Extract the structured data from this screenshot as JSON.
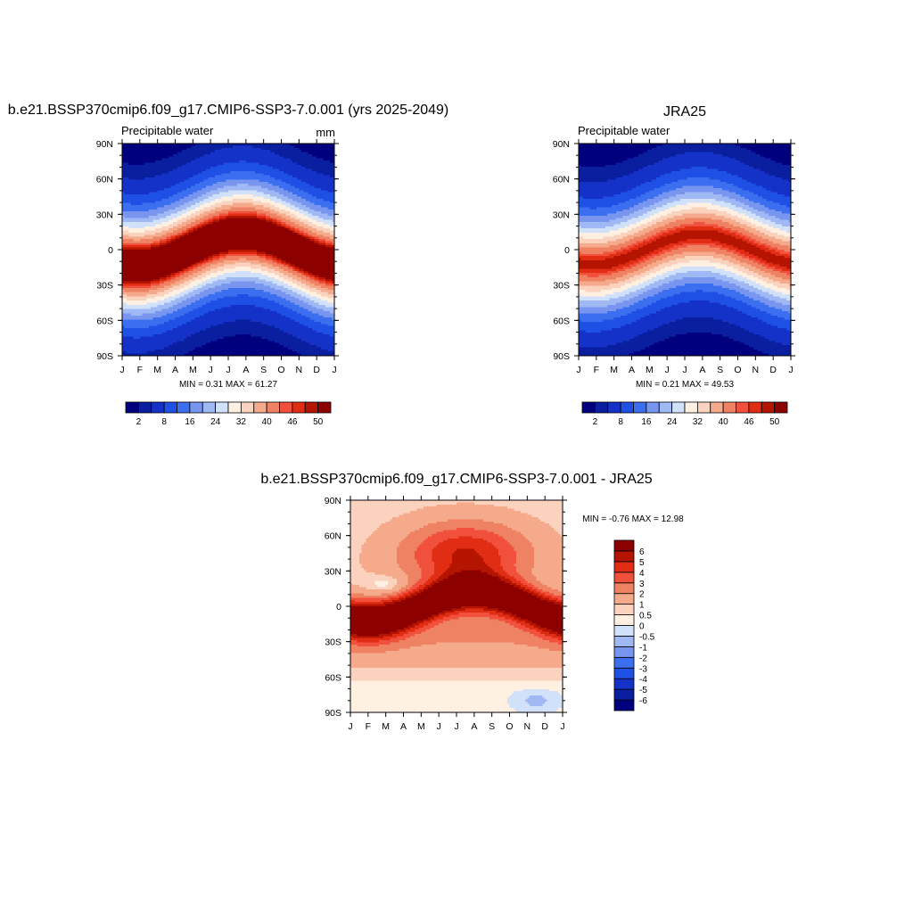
{
  "chart_data": [
    {
      "type": "heatmap",
      "title": "b.e21.BSSP370cmip6.f09_g17.CMIP6-SSP3-7.0.001 (yrs 2025-2049)",
      "left_string": "Precipitable water",
      "right_string": "mm",
      "x_ticks": [
        "J",
        "F",
        "M",
        "A",
        "M",
        "J",
        "J",
        "A",
        "S",
        "O",
        "N",
        "D",
        "J"
      ],
      "y_ticks": [
        "90N",
        "60N",
        "30N",
        "0",
        "30S",
        "60S",
        "90S"
      ],
      "stats": {
        "label": "MIN =   0.31 MAX =  61.27",
        "min": 0.31,
        "max": 61.27
      },
      "levels": [
        2,
        4,
        8,
        12,
        16,
        20,
        24,
        28,
        32,
        36,
        40,
        44,
        46,
        48,
        50
      ],
      "colorbar_labels": [
        "2",
        "8",
        "16",
        "24",
        "32",
        "40",
        "46",
        "50"
      ],
      "colors": [
        "#00007f",
        "#0a1ea0",
        "#1432c8",
        "#1e50e6",
        "#3c6ef0",
        "#7896f0",
        "#a0b9f5",
        "#d2e1fa",
        "#fff0e1",
        "#fad2be",
        "#f5aa8c",
        "#f08264",
        "#f0503c",
        "#e12d14",
        "#b41400",
        "#8c0000"
      ],
      "model": {
        "eq_max": 61.27,
        "shift_amplitude": 14,
        "cap_level": 50
      }
    },
    {
      "type": "heatmap",
      "title": "JRA25",
      "left_string": "Precipitable water",
      "right_string": "",
      "x_ticks": [
        "J",
        "F",
        "M",
        "A",
        "M",
        "J",
        "J",
        "A",
        "S",
        "O",
        "N",
        "D",
        "J"
      ],
      "y_ticks": [
        "90N",
        "60N",
        "30N",
        "0",
        "30S",
        "60S",
        "90S"
      ],
      "stats": {
        "label": "MIN =   0.21 MAX =  49.53",
        "min": 0.21,
        "max": 49.53
      },
      "levels": [
        2,
        4,
        8,
        12,
        16,
        20,
        24,
        28,
        32,
        36,
        40,
        44,
        46,
        48,
        50
      ],
      "colorbar_labels": [
        "2",
        "8",
        "16",
        "24",
        "32",
        "40",
        "46",
        "50"
      ],
      "colors": [
        "#00007f",
        "#0a1ea0",
        "#1432c8",
        "#1e50e6",
        "#3c6ef0",
        "#7896f0",
        "#a0b9f5",
        "#d2e1fa",
        "#fff0e1",
        "#fad2be",
        "#f5aa8c",
        "#f08264",
        "#f0503c",
        "#e12d14",
        "#b41400",
        "#8c0000"
      ],
      "model": {
        "eq_max": 49.53,
        "shift_amplitude": 13,
        "cap_level": 50
      }
    },
    {
      "type": "heatmap",
      "title": "b.e21.BSSP370cmip6.f09_g17.CMIP6-SSP3-7.0.001 - JRA25",
      "left_string": "",
      "right_string": "",
      "x_ticks": [
        "J",
        "F",
        "M",
        "A",
        "M",
        "J",
        "J",
        "A",
        "S",
        "O",
        "N",
        "D",
        "J"
      ],
      "y_ticks": [
        "90N",
        "60N",
        "30N",
        "0",
        "30S",
        "60S",
        "90S"
      ],
      "stats": {
        "label": "MIN =  -0.76 MAX =  12.98",
        "min": -0.76,
        "max": 12.98
      },
      "levels": [
        -6,
        -5,
        -4,
        -3,
        -2,
        -1,
        -0.5,
        0,
        0.5,
        1,
        2,
        3,
        4,
        5,
        6
      ],
      "colorbar_labels": [
        "6",
        "5",
        "4",
        "3",
        "2",
        "1",
        "0.5",
        "0",
        "-0.5",
        "-1",
        "-2",
        "-3",
        "-4",
        "-5",
        "-6"
      ],
      "colors": [
        "#00007f",
        "#0a1ea0",
        "#1432c8",
        "#1e50e6",
        "#3c6ef0",
        "#7896f0",
        "#a0b9f5",
        "#d2e1fa",
        "#fff0e1",
        "#fad2be",
        "#f5aa8c",
        "#f08264",
        "#f0503c",
        "#e12d14",
        "#b41400",
        "#8c0000"
      ]
    }
  ]
}
